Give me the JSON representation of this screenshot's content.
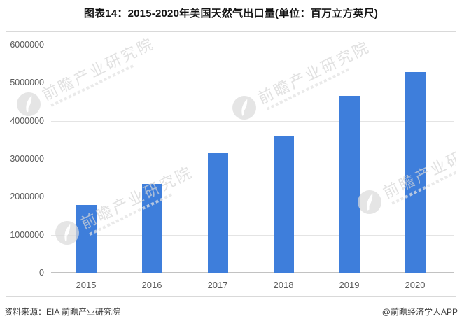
{
  "title": "图表14：2015-2020年美国天然气出口量(单位：百万立方英尺)",
  "watermark": {
    "text": "前瞻产业研究院"
  },
  "footer": {
    "source": "资料来源：EIA 前瞻产业研究院",
    "credit": "@前瞻经济学人APP"
  },
  "chart_data": {
    "type": "bar",
    "title": "图表14：2015-2020年美国天然气出口量(单位：百万立方英尺)",
    "unit": "百万立方英尺",
    "categories": [
      "2015",
      "2016",
      "2017",
      "2018",
      "2019",
      "2020"
    ],
    "values": [
      1780000,
      2340000,
      3150000,
      3600000,
      4660000,
      5280000
    ],
    "xlabel": "",
    "ylabel": "",
    "ylim": [
      0,
      6000000
    ],
    "ytick_interval": 1000000,
    "ytick_labels": [
      "0",
      "1000000",
      "2000000",
      "3000000",
      "4000000",
      "5000000",
      "6000000"
    ],
    "bar_color": "#3E7EDB",
    "grid": true,
    "legend": false
  }
}
